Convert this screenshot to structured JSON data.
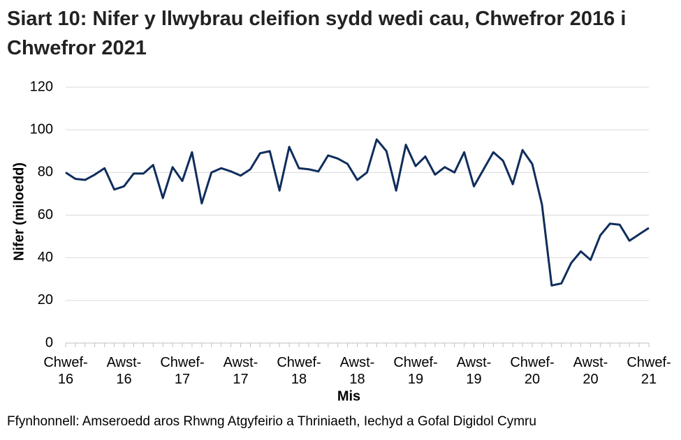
{
  "chart_data": {
    "type": "line",
    "title": "Siart 10: Nifer y llwybrau cleifion sydd wedi cau, Chwefror 2016 i Chwefror 2021",
    "x_label": "Mis",
    "y_label": "Nifer (miloedd)",
    "source": "Ffynhonnell: Amseroedd aros Rhwng Atgyfeirio a Thriniaeth, Iechyd a Gofal Digidol Cymru",
    "categories": [
      "Chwef-16",
      null,
      null,
      null,
      null,
      null,
      "Awst-16",
      null,
      null,
      null,
      null,
      null,
      "Chwef-17",
      null,
      null,
      null,
      null,
      null,
      "Awst-17",
      null,
      null,
      null,
      null,
      null,
      "Chwef-18",
      null,
      null,
      null,
      null,
      null,
      "Awst-18",
      null,
      null,
      null,
      null,
      null,
      "Chwef-19",
      null,
      null,
      null,
      null,
      null,
      "Awst-19",
      null,
      null,
      null,
      null,
      null,
      "Chwef-20",
      null,
      null,
      null,
      null,
      null,
      "Awst-20",
      null,
      null,
      null,
      null,
      null,
      "Chwef-21"
    ],
    "series": [
      {
        "name": "Nifer",
        "color": "#0f2d5c",
        "values": [
          80,
          77,
          76.5,
          79,
          82,
          72,
          73.5,
          79.5,
          79.5,
          83.5,
          68,
          82.5,
          76,
          89.5,
          65.5,
          80,
          82,
          80.5,
          78.5,
          81.5,
          89,
          90,
          71.5,
          92,
          82,
          81.5,
          80.5,
          88,
          86.5,
          84,
          76.5,
          80,
          95.5,
          90,
          71.5,
          93,
          83,
          87.5,
          79,
          82.5,
          80,
          89.5,
          73.5,
          81.5,
          89.5,
          85.5,
          74.5,
          90.5,
          84,
          65,
          27,
          28,
          37.5,
          43,
          39,
          50.5,
          56,
          55.5,
          48,
          51,
          54
        ]
      }
    ],
    "ylim": [
      0,
      120
    ],
    "yticks": [
      0,
      20,
      40,
      60,
      80,
      100,
      120
    ],
    "grid": true
  }
}
